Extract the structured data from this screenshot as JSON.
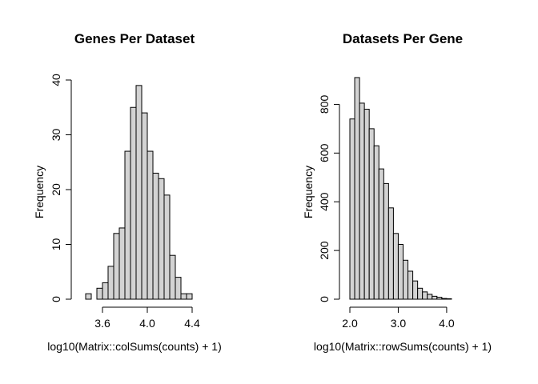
{
  "chart_data": [
    {
      "type": "bar",
      "title": "Genes Per Dataset",
      "xlabel": "log10(Matrix::colSums(counts) + 1)",
      "ylabel": "Frequency",
      "xlim": [
        3.4,
        4.4
      ],
      "ylim": [
        0,
        40
      ],
      "xticks": [
        3.6,
        4.0,
        4.4
      ],
      "xtick_labels": [
        "3.6",
        "4.0",
        "4.4"
      ],
      "yticks": [
        0,
        10,
        20,
        30,
        40
      ],
      "ytick_labels": [
        "0",
        "10",
        "20",
        "30",
        "40"
      ],
      "bin_width": 0.05,
      "bins_start": [
        3.45,
        3.5,
        3.55,
        3.6,
        3.65,
        3.7,
        3.75,
        3.8,
        3.85,
        3.9,
        3.95,
        4.0,
        4.05,
        4.1,
        4.15,
        4.2,
        4.25,
        4.3,
        4.35
      ],
      "values": [
        1,
        0,
        2,
        3,
        6,
        12,
        13,
        27,
        35,
        39,
        34,
        27,
        23,
        22,
        19,
        8,
        4,
        1,
        1
      ],
      "bar_color": "#d3d3d3",
      "grid": false
    },
    {
      "type": "bar",
      "title": "Datasets Per Gene",
      "xlabel": "log10(Matrix::rowSums(counts) + 1)",
      "ylabel": "Frequency",
      "xlim": [
        2.0,
        4.2
      ],
      "ylim": [
        0,
        900
      ],
      "xticks": [
        2.0,
        3.0,
        4.0
      ],
      "xtick_labels": [
        "2.0",
        "3.0",
        "4.0"
      ],
      "yticks": [
        0,
        200,
        400,
        600,
        800
      ],
      "ytick_labels": [
        "0",
        "200",
        "400",
        "600",
        "800"
      ],
      "bin_width": 0.1,
      "bins_start": [
        2.0,
        2.1,
        2.2,
        2.3,
        2.4,
        2.5,
        2.6,
        2.7,
        2.8,
        2.9,
        3.0,
        3.1,
        3.2,
        3.3,
        3.4,
        3.5,
        3.6,
        3.7,
        3.8,
        3.9,
        4.0
      ],
      "values": [
        740,
        910,
        805,
        780,
        700,
        630,
        535,
        475,
        375,
        270,
        225,
        160,
        115,
        75,
        45,
        30,
        20,
        12,
        8,
        3,
        2
      ],
      "bar_color": "#d3d3d3",
      "grid": false
    }
  ]
}
